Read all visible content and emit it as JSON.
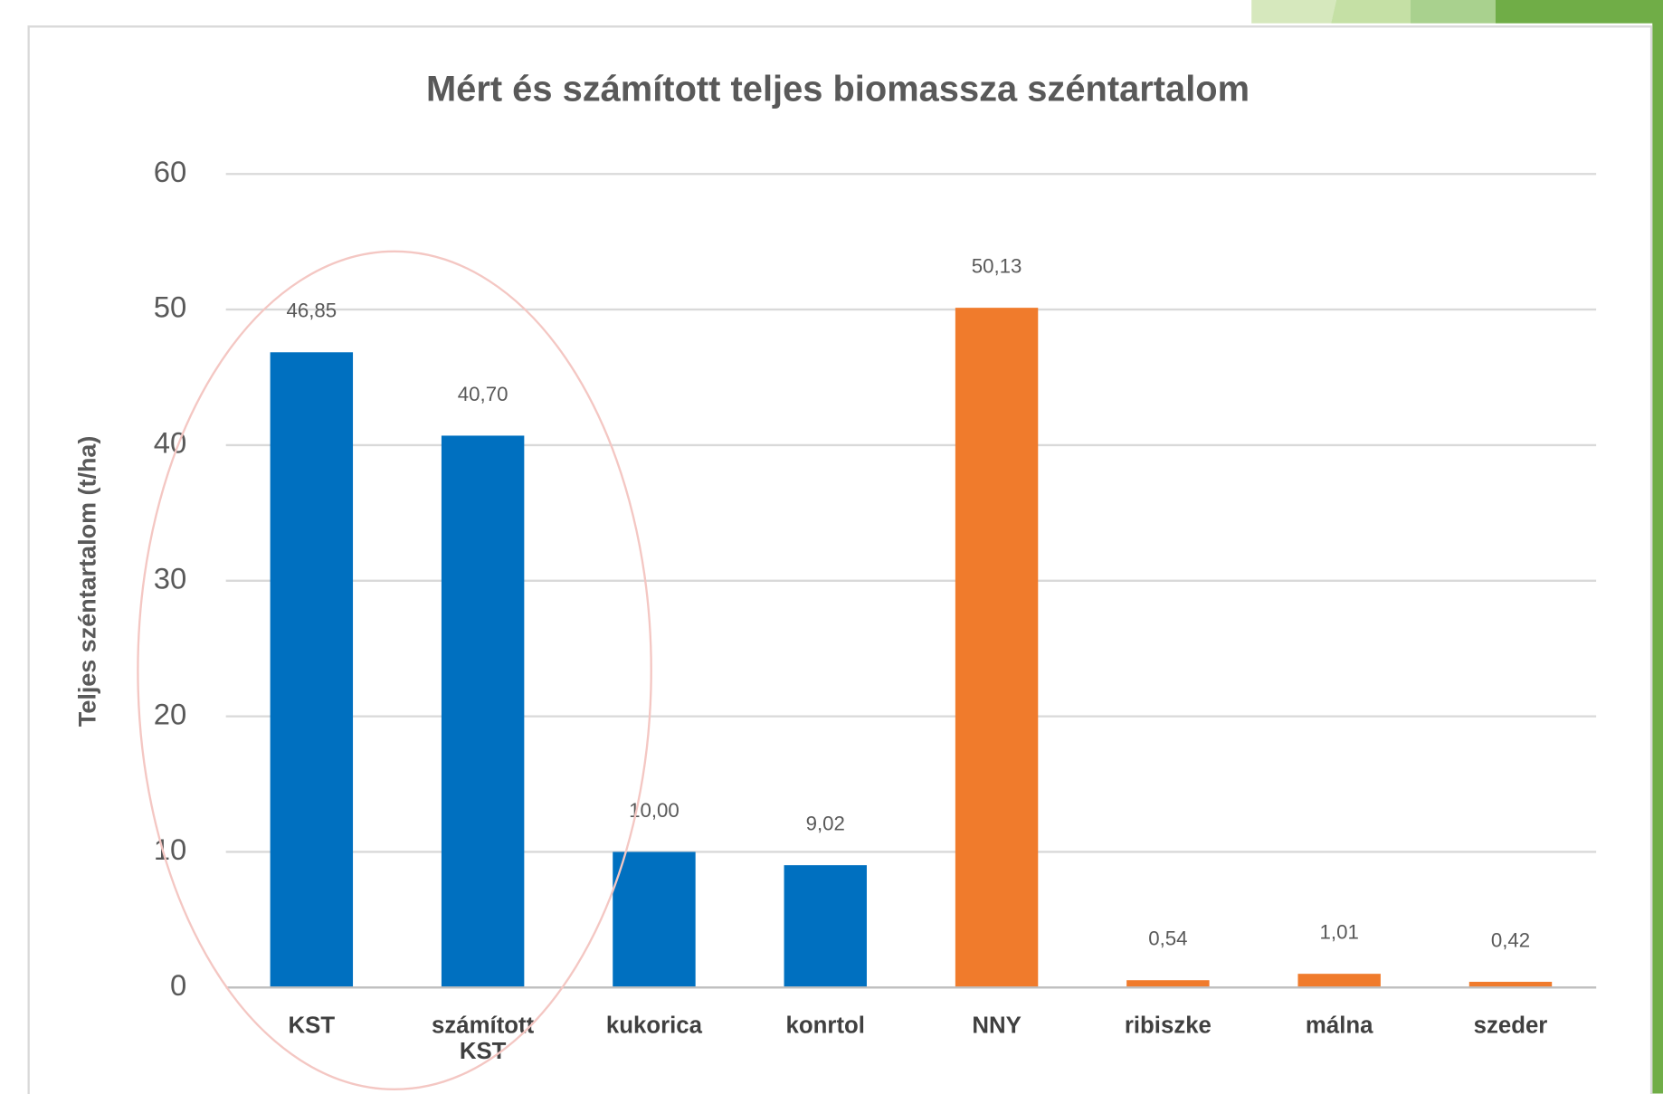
{
  "chart_data": {
    "type": "bar",
    "title": "Mért és számított teljes biomassza széntartalom",
    "y_label": "Teljes széntartalom (t/ha)",
    "categories": [
      "KST",
      "számított KST",
      "kukorica",
      "konrtol",
      "NNY",
      "ribiszke",
      "málna",
      "szeder"
    ],
    "values": [
      46.85,
      40.7,
      10.0,
      9.02,
      50.13,
      0.54,
      1.01,
      0.42
    ],
    "value_labels": [
      "46,85",
      "40,70",
      "10,00",
      "9,02",
      "50,13",
      "0,54",
      "1,01",
      "0,42"
    ],
    "colors": [
      "#0070c0",
      "#0070c0",
      "#0070c0",
      "#0070c0",
      "#f07b2c",
      "#f07b2c",
      "#f07b2c",
      "#f07b2c"
    ],
    "ylim": [
      0,
      60
    ],
    "yticks": [
      0,
      10,
      20,
      30,
      40,
      50,
      60
    ],
    "grid": true
  }
}
